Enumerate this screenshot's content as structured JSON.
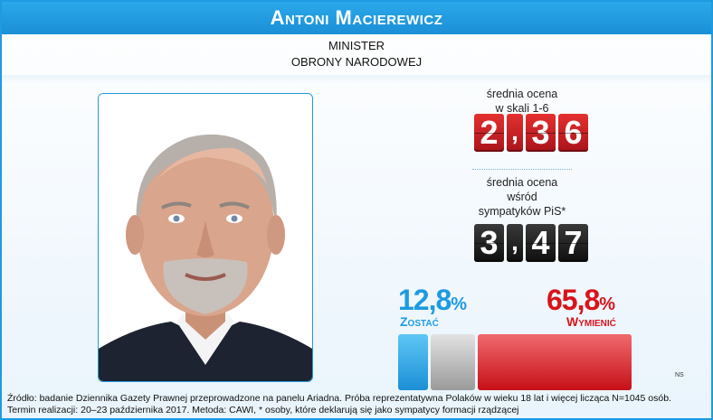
{
  "header": {
    "name": "Antoni Macierewicz"
  },
  "role": {
    "line1": "MINISTER",
    "line2": "OBRONY NARODOWEJ"
  },
  "ratings": {
    "overall": {
      "label_lines": [
        "średnia ocena",
        "w skali 1-6"
      ],
      "digits": [
        "2",
        ",",
        "3",
        "6"
      ],
      "value": 2.36,
      "color": "#d8141b"
    },
    "pis": {
      "label_lines": [
        "średnia ocena",
        "wśród",
        "sympatyków PiS*"
      ],
      "digits": [
        "3",
        ",",
        "4",
        "7"
      ],
      "value": 3.47,
      "color": "#111111"
    }
  },
  "poll": {
    "keep": {
      "value_text": "12,8",
      "sign": "%",
      "label": "Zostać",
      "value": 12.8,
      "color": "#1e9be0"
    },
    "replace": {
      "value_text": "65,8",
      "sign": "%",
      "label": "Wymienić",
      "value": 65.8,
      "color": "#d8141b"
    },
    "ns_label": "NS"
  },
  "footer": {
    "line1": "Źródło: badanie Dziennika Gazety Prawnej przeprowadzone na panelu Ariadna. Próba reprezentatywna Polaków w wieku 18 lat i więcej licząca N=1045 osób.",
    "line2": "Termin realizacji: 20–23 października 2017. Metoda: CAWI, * osoby, które deklarują się jako sympatycy formacji rządzącej"
  }
}
